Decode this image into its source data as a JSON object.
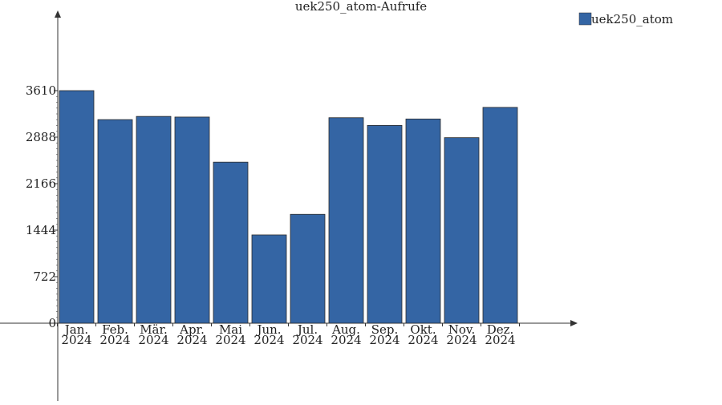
{
  "chart_data": {
    "type": "bar",
    "title": "uek250_atom-Aufrufe",
    "xlabel": "",
    "ylabel": "",
    "categories": [
      [
        "Jan.",
        "2024"
      ],
      [
        "Feb.",
        "2024"
      ],
      [
        "Mär.",
        "2024"
      ],
      [
        "Apr.",
        "2024"
      ],
      [
        "Mai",
        "2024"
      ],
      [
        "Jun.",
        "2024"
      ],
      [
        "Jul.",
        "2024"
      ],
      [
        "Aug.",
        "2024"
      ],
      [
        "Sep.",
        "2024"
      ],
      [
        "Okt.",
        "2024"
      ],
      [
        "Nov.",
        "2024"
      ],
      [
        "Dez.",
        "2024"
      ]
    ],
    "series": [
      {
        "name": "uek250_atom",
        "color": "#3465a4",
        "values": [
          3610,
          3160,
          3210,
          3200,
          2500,
          1370,
          1690,
          3190,
          3070,
          3170,
          2880,
          3350
        ]
      }
    ],
    "yticks": [
      0,
      722,
      1444,
      2166,
      2888,
      3610
    ],
    "ylim": [
      0,
      4800
    ],
    "grid": false,
    "legend": "top-right"
  }
}
